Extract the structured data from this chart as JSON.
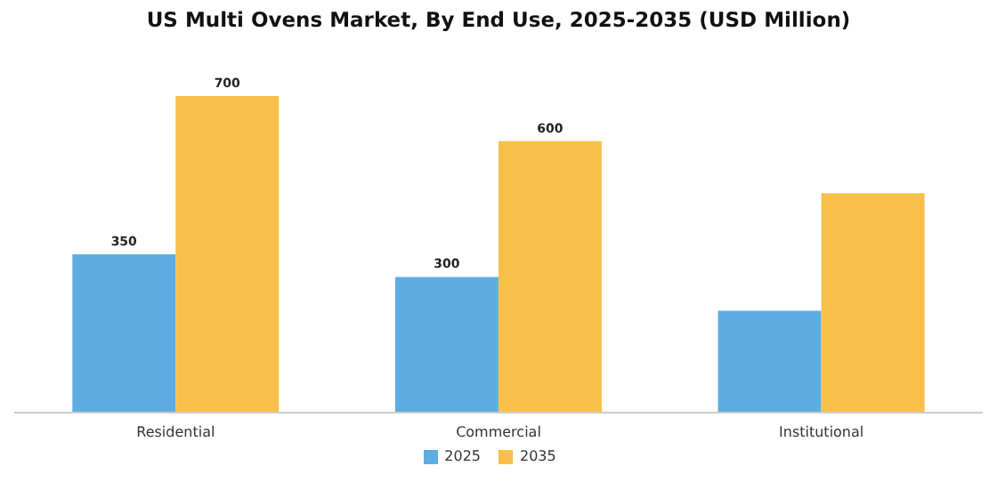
{
  "chart_data": {
    "type": "bar",
    "title": "US Multi Ovens Market, By End Use, 2025-2035 (USD Million)",
    "categories": [
      "Residential",
      "Commercial",
      "Institutional"
    ],
    "series": [
      {
        "name": "2025",
        "color": "#5dade2",
        "values": [
          350,
          300,
          225
        ],
        "value_labels": [
          "350",
          "300",
          null
        ]
      },
      {
        "name": "2035",
        "color": "#f7c04a",
        "values": [
          700,
          600,
          485
        ],
        "value_labels": [
          "700",
          "600",
          null
        ]
      }
    ],
    "legend": "bottom",
    "grid": false
  }
}
